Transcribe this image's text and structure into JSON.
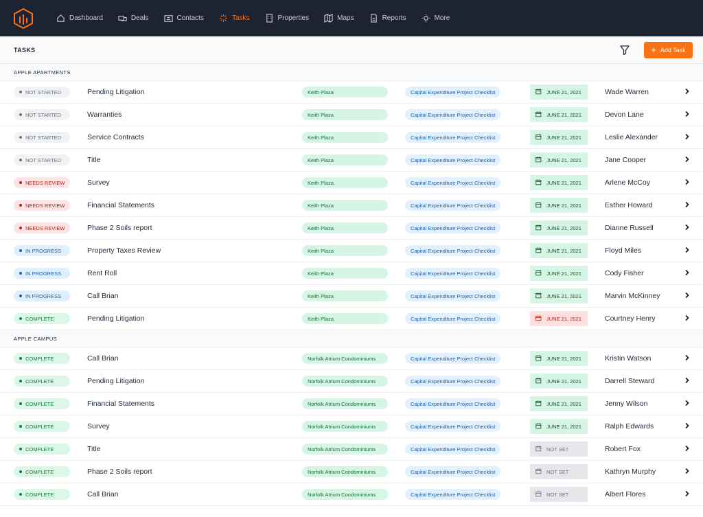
{
  "nav": {
    "items": [
      "Dashboard",
      "Deals",
      "Contacts",
      "Tasks",
      "Properties",
      "Maps",
      "Reports",
      "More"
    ],
    "active": 3
  },
  "header": {
    "title": "TASKS",
    "add_button": "Add Task"
  },
  "groups": [
    {
      "name": "APPLE APARTMENTS",
      "rows": [
        {
          "status": "NOT STARTED",
          "status_color": "gray",
          "task": "Pending Litigation",
          "property": "Keith Plaza",
          "checklist": "Capital Expenditure Project Checklist",
          "date": "JUNE 21, 2021",
          "date_color": "green",
          "assignee": "Wade Warren"
        },
        {
          "status": "NOT STARTED",
          "status_color": "gray",
          "task": "Warranties",
          "property": "Keith Plaza",
          "checklist": "Capital Expenditure Project Checklist",
          "date": "JUNE 21, 2021",
          "date_color": "green",
          "assignee": "Devon Lane"
        },
        {
          "status": "NOT STARTED",
          "status_color": "gray",
          "task": "Service Contracts",
          "property": "Keith Plaza",
          "checklist": "Capital Expenditure Project Checklist",
          "date": "JUNE 21, 2021",
          "date_color": "green",
          "assignee": "Leslie Alexander"
        },
        {
          "status": "NOT STARTED",
          "status_color": "gray",
          "task": "Title",
          "property": "Keith Plaza",
          "checklist": "Capital Expenditure Project Checklist",
          "date": "JUNE 21, 2021",
          "date_color": "green",
          "assignee": "Jane Cooper"
        },
        {
          "status": "NEEDS REVIEW",
          "status_color": "red",
          "task": "Survey",
          "property": "Keith Plaza",
          "checklist": "Capital Expenditure Project Checklist",
          "date": "JUNE 21, 2021",
          "date_color": "green",
          "assignee": "Arlene McCoy"
        },
        {
          "status": "NEEDS REVIEW",
          "status_color": "red",
          "task": "Financial Statements",
          "property": "Keith Plaza",
          "checklist": "Capital Expenditure Project Checklist",
          "date": "JUNE 21, 2021",
          "date_color": "green",
          "assignee": "Esther Howard"
        },
        {
          "status": "NEEDS REVIEW",
          "status_color": "red",
          "task": "Phase 2 Soils report",
          "property": "Keith Plaza",
          "checklist": "Capital Expenditure Project Checklist",
          "date": "JUNE 21, 2021",
          "date_color": "green",
          "assignee": "Dianne Russell"
        },
        {
          "status": "IN PROGRESS",
          "status_color": "blue",
          "task": "Property Taxes Review",
          "property": "Keith Plaza",
          "checklist": "Capital Expenditure Project Checklist",
          "date": "JUNE 21, 2021",
          "date_color": "green",
          "assignee": "Floyd Miles"
        },
        {
          "status": "IN PROGRESS",
          "status_color": "blue",
          "task": "Rent Roll",
          "property": "Keith Plaza",
          "checklist": "Capital Expenditure Project Checklist",
          "date": "JUNE 21, 2021",
          "date_color": "green",
          "assignee": "Cody Fisher"
        },
        {
          "status": "IN PROGRESS",
          "status_color": "blue",
          "task": "Call Brian",
          "property": "Keith Plaza",
          "checklist": "Capital Expenditure Project Checklist",
          "date": "JUNE 21, 2021",
          "date_color": "green",
          "assignee": "Marvin McKinney"
        },
        {
          "status": "COMPLETE",
          "status_color": "green",
          "task": "Pending Litigation",
          "property": "Keith Plaza",
          "checklist": "Capital Expenditure Project Checklist",
          "date": "JUNE 21, 2021",
          "date_color": "red",
          "assignee": "Courtney Henry"
        }
      ]
    },
    {
      "name": "APPLE CAMPUS",
      "rows": [
        {
          "status": "COMPLETE",
          "status_color": "green",
          "task": "Call Brian",
          "property": "Norfolk Atrium Condominiums",
          "checklist": "Capital Expenditure Project Checklist",
          "date": "JUNE 21, 2021",
          "date_color": "green",
          "assignee": "Kristin Watson"
        },
        {
          "status": "COMPLETE",
          "status_color": "green",
          "task": "Pending Litigation",
          "property": "Norfolk Atrium Condominiums",
          "checklist": "Capital Expenditure Project Checklist",
          "date": "JUNE 21, 2021",
          "date_color": "green",
          "assignee": "Darrell Steward"
        },
        {
          "status": "COMPLETE",
          "status_color": "green",
          "task": "Financial Statements",
          "property": "Norfolk Atrium Condominiums",
          "checklist": "Capital Expenditure Project Checklist",
          "date": "JUNE 21, 2021",
          "date_color": "green",
          "assignee": "Jenny Wilson"
        },
        {
          "status": "COMPLETE",
          "status_color": "green",
          "task": "Survey",
          "property": "Norfolk Atrium Condominiums",
          "checklist": "Capital Expenditure Project Checklist",
          "date": "JUNE 21, 2021",
          "date_color": "green",
          "assignee": "Ralph Edwards"
        },
        {
          "status": "COMPLETE",
          "status_color": "green",
          "task": "Title",
          "property": "Norfolk Atrium Condominiums",
          "checklist": "Capital Expenditure Project Checklist",
          "date": "NOT SET",
          "date_color": "gray",
          "assignee": "Robert Fox"
        },
        {
          "status": "COMPLETE",
          "status_color": "green",
          "task": "Phase 2 Soils report",
          "property": "Norfolk Atrium Condominiums",
          "checklist": "Capital Expenditure Project Checklist",
          "date": "NOT SET",
          "date_color": "gray",
          "assignee": "Kathryn Murphy"
        },
        {
          "status": "COMPLETE",
          "status_color": "green",
          "task": "Call Brian",
          "property": "Norfolk Atrium Condominiums",
          "checklist": "Capital Expenditure Project Checklist",
          "date": "NOT SET",
          "date_color": "gray",
          "assignee": "Albert Flores"
        }
      ]
    }
  ]
}
